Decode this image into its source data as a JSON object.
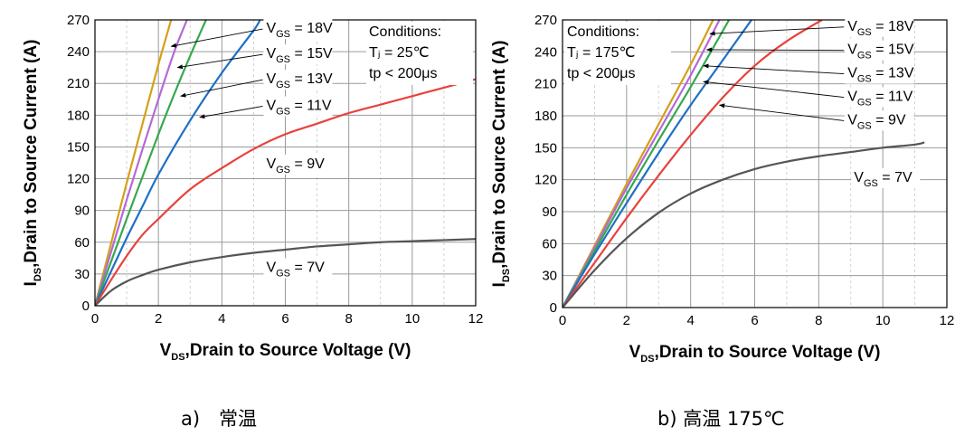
{
  "chart_data": [
    {
      "type": "line",
      "caption": "a)　常温",
      "xlabel": {
        "main": "V",
        "sub": "DS",
        "rest": ",Drain to Source Voltage (V)"
      },
      "ylabel": {
        "main": "I",
        "sub": "DS",
        "rest": ",Drain to Source Current (A)"
      },
      "xlim": [
        0,
        12
      ],
      "ylim": [
        0,
        270
      ],
      "xticks": [
        0,
        2,
        4,
        6,
        8,
        10,
        12
      ],
      "yticks": [
        0,
        30,
        60,
        90,
        120,
        150,
        180,
        210,
        240,
        270
      ],
      "conditions": [
        "Conditions:",
        "Tⱼ = 25℃",
        "tp < 200μs"
      ],
      "series": [
        {
          "name": "V_GS = 18V",
          "label": {
            "main": "V",
            "sub": "GS",
            "rest": " = 18V"
          },
          "color": "#d4a017",
          "x": [
            0,
            0.5,
            1,
            1.5,
            2,
            2.4
          ],
          "y": [
            0,
            58,
            116,
            172,
            228,
            270
          ]
        },
        {
          "name": "V_GS = 15V",
          "label": {
            "main": "V",
            "sub": "GS",
            "rest": " = 15V"
          },
          "color": "#b36ad6",
          "x": [
            0,
            0.5,
            1,
            1.5,
            2,
            2.5,
            2.9
          ],
          "y": [
            0,
            50,
            100,
            148,
            195,
            240,
            270
          ]
        },
        {
          "name": "V_GS = 13V",
          "label": {
            "main": "V",
            "sub": "GS",
            "rest": " = 13V"
          },
          "color": "#36a84f",
          "x": [
            0,
            0.5,
            1,
            1.5,
            2,
            2.5,
            3,
            3.5
          ],
          "y": [
            0,
            41,
            82,
            122,
            162,
            200,
            236,
            270
          ]
        },
        {
          "name": "V_GS = 11V",
          "label": {
            "main": "V",
            "sub": "GS",
            "rest": " = 11V"
          },
          "color": "#1f6fc5",
          "x": [
            0,
            0.5,
            1,
            1.5,
            2,
            3,
            4,
            5,
            5.2
          ],
          "y": [
            0,
            32,
            64,
            94,
            124,
            175,
            220,
            260,
            270
          ]
        },
        {
          "name": "V_GS = 9V",
          "label": {
            "main": "V",
            "sub": "GS",
            "rest": " = 9V"
          },
          "color": "#e8423c",
          "x": [
            0,
            0.5,
            1,
            1.5,
            2,
            3,
            4,
            5,
            6,
            7,
            8,
            9,
            10,
            11,
            12
          ],
          "y": [
            0,
            24,
            47,
            67,
            82,
            110,
            130,
            148,
            162,
            172,
            182,
            190,
            198,
            206,
            214
          ]
        },
        {
          "name": "V_GS = 7V",
          "label": {
            "main": "V",
            "sub": "GS",
            "rest": " = 7V"
          },
          "color": "#555555",
          "x": [
            0,
            0.5,
            1,
            1.5,
            2,
            3,
            4,
            5,
            6,
            7,
            8,
            9,
            10,
            11,
            12
          ],
          "y": [
            0,
            14,
            23,
            29,
            34,
            41,
            46,
            50,
            53,
            56,
            58,
            60,
            61,
            62,
            63
          ]
        }
      ],
      "labels": [
        {
          "series": "V_GS = 18V",
          "text_x": 5.4,
          "text_y": 258,
          "arrow_x": 2.4,
          "arrow_y": 245
        },
        {
          "series": "V_GS = 15V",
          "text_x": 5.4,
          "text_y": 234,
          "arrow_x": 2.6,
          "arrow_y": 225
        },
        {
          "series": "V_GS = 13V",
          "text_x": 5.4,
          "text_y": 210,
          "arrow_x": 2.7,
          "arrow_y": 198
        },
        {
          "series": "V_GS = 11V",
          "text_x": 5.4,
          "text_y": 185,
          "arrow_x": 3.3,
          "arrow_y": 178
        },
        {
          "series": "V_GS = 9V",
          "text_x": 5.4,
          "text_y": 130,
          "arrow_x": null,
          "arrow_y": null
        },
        {
          "series": "V_GS = 7V",
          "text_x": 5.4,
          "text_y": 32,
          "arrow_x": null,
          "arrow_y": null
        }
      ]
    },
    {
      "type": "line",
      "caption": "b) 高温 175℃",
      "xlabel": {
        "main": "V",
        "sub": "DS",
        "rest": ",Drain to Source Voltage (V)"
      },
      "ylabel": {
        "main": "I",
        "sub": "DS",
        "rest": ",Drain to Source Current (A)"
      },
      "xlim": [
        0,
        12
      ],
      "ylim": [
        0,
        270
      ],
      "xticks": [
        0,
        2,
        4,
        6,
        8,
        10,
        12
      ],
      "yticks": [
        0,
        30,
        60,
        90,
        120,
        150,
        180,
        210,
        240,
        270
      ],
      "conditions": [
        "Conditions:",
        "Tⱼ = 175℃",
        "tp < 200μs"
      ],
      "series": [
        {
          "name": "V_GS = 18V",
          "label": {
            "main": "V",
            "sub": "GS",
            "rest": " = 18V"
          },
          "color": "#d4a017",
          "x": [
            0,
            1,
            2,
            3,
            4,
            4.7
          ],
          "y": [
            0,
            58,
            116,
            172,
            228,
            270
          ]
        },
        {
          "name": "V_GS = 15V",
          "label": {
            "main": "V",
            "sub": "GS",
            "rest": " = 15V"
          },
          "color": "#b36ad6",
          "x": [
            0,
            1,
            2,
            3,
            4,
            4.9
          ],
          "y": [
            0,
            56,
            112,
            165,
            218,
            270
          ]
        },
        {
          "name": "V_GS = 13V",
          "label": {
            "main": "V",
            "sub": "GS",
            "rest": " = 13V"
          },
          "color": "#36a84f",
          "x": [
            0,
            1,
            2,
            3,
            4,
            5.2
          ],
          "y": [
            0,
            53,
            106,
            157,
            207,
            270
          ]
        },
        {
          "name": "V_GS = 11V",
          "label": {
            "main": "V",
            "sub": "GS",
            "rest": " = 11V"
          },
          "color": "#1f6fc5",
          "x": [
            0,
            1,
            2,
            3,
            4,
            5,
            5.9
          ],
          "y": [
            0,
            50,
            98,
            145,
            190,
            232,
            270
          ]
        },
        {
          "name": "V_GS = 9V",
          "label": {
            "main": "V",
            "sub": "GS",
            "rest": " = 9V"
          },
          "color": "#e8423c",
          "x": [
            0,
            1,
            2,
            3,
            4,
            5,
            6,
            7,
            8.1
          ],
          "y": [
            0,
            42,
            84,
            124,
            162,
            197,
            227,
            250,
            270
          ]
        },
        {
          "name": "V_GS = 7V",
          "label": {
            "main": "V",
            "sub": "GS",
            "rest": " = 7V"
          },
          "color": "#555555",
          "x": [
            0,
            1,
            2,
            3,
            4,
            5,
            6,
            7,
            8,
            9,
            10,
            11,
            11.3
          ],
          "y": [
            0,
            35,
            65,
            89,
            107,
            120,
            130,
            137,
            142,
            146,
            150,
            153,
            155
          ]
        }
      ],
      "labels": [
        {
          "series": "V_GS = 18V",
          "text_x": 8.9,
          "text_y": 260,
          "arrow_x": 4.6,
          "arrow_y": 257
        },
        {
          "series": "V_GS = 15V",
          "text_x": 8.9,
          "text_y": 238,
          "arrow_x": 4.5,
          "arrow_y": 242
        },
        {
          "series": "V_GS = 13V",
          "text_x": 8.9,
          "text_y": 216,
          "arrow_x": 4.4,
          "arrow_y": 227
        },
        {
          "series": "V_GS = 11V",
          "text_x": 8.9,
          "text_y": 194,
          "arrow_x": 4.4,
          "arrow_y": 212
        },
        {
          "series": "V_GS = 9V",
          "text_x": 8.9,
          "text_y": 172,
          "arrow_x": 4.9,
          "arrow_y": 190
        },
        {
          "series": "V_GS = 7V",
          "text_x": 9.1,
          "text_y": 118,
          "arrow_x": null,
          "arrow_y": null
        }
      ]
    }
  ]
}
